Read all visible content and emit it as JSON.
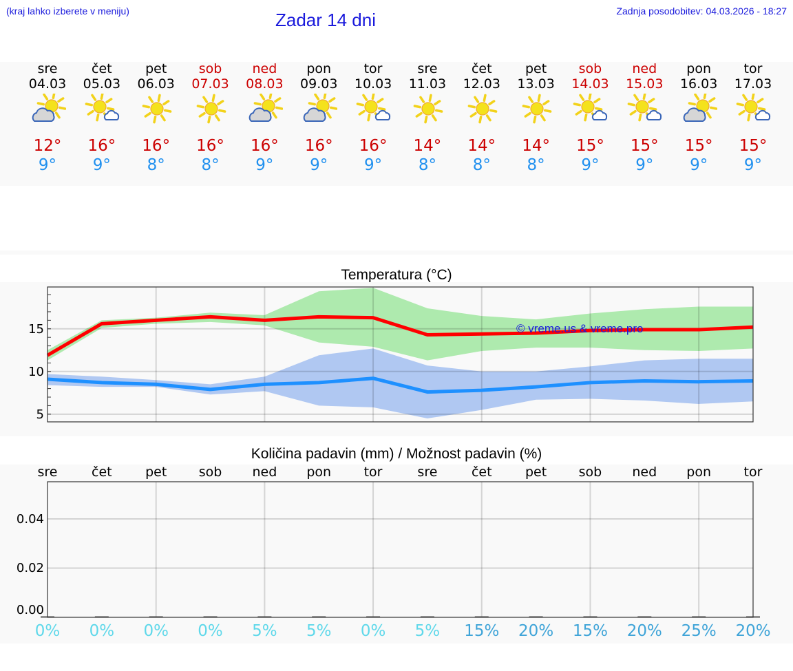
{
  "header": {
    "location_hint": "(kraj lahko izberete v meniju)",
    "title": "Zadar 14 dni",
    "last_update": "Zadnja posodobitev: 04.03.2026 - 18:27"
  },
  "days": [
    {
      "name": "sre",
      "date": "04.03",
      "weekend": false,
      "icon": "partly-cloudy-grey-cloud-icon",
      "tmax": "12°",
      "tmin": "9°"
    },
    {
      "name": "čet",
      "date": "05.03",
      "weekend": false,
      "icon": "sun-small-cloud-icon",
      "tmax": "16°",
      "tmin": "9°"
    },
    {
      "name": "pet",
      "date": "06.03",
      "weekend": false,
      "icon": "sunny-icon",
      "tmax": "16°",
      "tmin": "8°"
    },
    {
      "name": "sob",
      "date": "07.03",
      "weekend": true,
      "icon": "sunny-icon",
      "tmax": "16°",
      "tmin": "8°"
    },
    {
      "name": "ned",
      "date": "08.03",
      "weekend": true,
      "icon": "partly-cloudy-grey-cloud-icon",
      "tmax": "16°",
      "tmin": "9°"
    },
    {
      "name": "pon",
      "date": "09.03",
      "weekend": false,
      "icon": "partly-cloudy-grey-cloud-icon",
      "tmax": "16°",
      "tmin": "9°"
    },
    {
      "name": "tor",
      "date": "10.03",
      "weekend": false,
      "icon": "sun-small-cloud-icon",
      "tmax": "16°",
      "tmin": "9°"
    },
    {
      "name": "sre",
      "date": "11.03",
      "weekend": false,
      "icon": "sunny-icon",
      "tmax": "14°",
      "tmin": "8°"
    },
    {
      "name": "čet",
      "date": "12.03",
      "weekend": false,
      "icon": "sunny-icon",
      "tmax": "14°",
      "tmin": "8°"
    },
    {
      "name": "pet",
      "date": "13.03",
      "weekend": false,
      "icon": "sunny-icon",
      "tmax": "14°",
      "tmin": "8°"
    },
    {
      "name": "sob",
      "date": "14.03",
      "weekend": true,
      "icon": "sun-small-cloud-icon",
      "tmax": "15°",
      "tmin": "9°"
    },
    {
      "name": "ned",
      "date": "15.03",
      "weekend": true,
      "icon": "sun-small-cloud-icon",
      "tmax": "15°",
      "tmin": "9°"
    },
    {
      "name": "pon",
      "date": "16.03",
      "weekend": false,
      "icon": "partly-cloudy-grey-cloud-icon",
      "tmax": "15°",
      "tmin": "9°"
    },
    {
      "name": "tor",
      "date": "17.03",
      "weekend": false,
      "icon": "sun-small-cloud-icon",
      "tmax": "15°",
      "tmin": "9°"
    }
  ],
  "colors": {
    "header_text": "#1a1adc",
    "weekend": "#cc0000",
    "tmax": "#cc0000",
    "tmin": "#2090ef",
    "max_line": "#ff0000",
    "max_band": "#aeeaae",
    "min_line": "#1e90ff",
    "min_band": "#b0c8f2",
    "pct_low": "#5fd8ea",
    "pct_high": "#3fa4d8",
    "panel_bg": "#f9f9f9"
  },
  "temperature_chart": {
    "title": "Temperatura (°C)",
    "watermark": "© vreme.us & vreme.pro",
    "y_ticks": [
      "15",
      "10",
      "5"
    ]
  },
  "precip_chart": {
    "title": "Količina padavin (mm) / Možnost padavin (%)",
    "weekday_labels": [
      "sre",
      "čet",
      "pet",
      "sob",
      "ned",
      "pon",
      "tor",
      "sre",
      "čet",
      "pet",
      "sob",
      "ned",
      "pon",
      "tor"
    ],
    "y_ticks": [
      "0.04",
      "0.02",
      "0.00"
    ],
    "probabilities": [
      "0%",
      "0%",
      "0%",
      "0%",
      "5%",
      "5%",
      "0%",
      "5%",
      "15%",
      "20%",
      "15%",
      "20%",
      "25%",
      "20%"
    ]
  },
  "chart_data": [
    {
      "type": "line",
      "title": "Temperatura (°C)",
      "xlabel": "",
      "ylabel": "°C",
      "categories": [
        "04.03",
        "05.03",
        "06.03",
        "07.03",
        "08.03",
        "09.03",
        "10.03",
        "11.03",
        "12.03",
        "13.03",
        "14.03",
        "15.03",
        "16.03",
        "17.03"
      ],
      "ylim": [
        4.1,
        19.9
      ],
      "y_ticks": [
        5,
        10,
        15
      ],
      "grid": true,
      "series": [
        {
          "name": "Max temperature",
          "color": "#ff0000",
          "values": [
            11.9,
            15.6,
            16.0,
            16.4,
            16.0,
            16.4,
            16.3,
            14.3,
            14.4,
            14.5,
            14.8,
            14.9,
            14.9,
            15.2
          ]
        },
        {
          "name": "Max range upper",
          "color": "#aeeaae",
          "values": [
            12.5,
            16.0,
            16.3,
            16.9,
            16.6,
            19.4,
            19.8,
            17.4,
            16.5,
            16.1,
            16.8,
            17.3,
            17.6,
            17.6
          ]
        },
        {
          "name": "Max range lower",
          "color": "#aeeaae",
          "values": [
            11.3,
            15.1,
            15.6,
            15.8,
            15.4,
            13.4,
            12.9,
            11.3,
            12.4,
            12.8,
            12.8,
            12.5,
            12.4,
            12.7
          ]
        },
        {
          "name": "Min temperature",
          "color": "#1e90ff",
          "values": [
            9.1,
            8.7,
            8.5,
            7.9,
            8.5,
            8.7,
            9.2,
            7.6,
            7.8,
            8.2,
            8.7,
            8.9,
            8.8,
            8.9
          ]
        },
        {
          "name": "Min range upper",
          "color": "#b0c8f2",
          "values": [
            9.7,
            9.4,
            9.0,
            8.5,
            9.4,
            11.9,
            12.7,
            10.7,
            10.0,
            10.0,
            10.6,
            11.3,
            11.5,
            11.5
          ]
        },
        {
          "name": "Min range lower",
          "color": "#b0c8f2",
          "values": [
            8.4,
            8.2,
            8.2,
            7.3,
            7.7,
            6.0,
            5.8,
            4.5,
            5.5,
            6.7,
            6.8,
            6.6,
            6.2,
            6.5
          ]
        }
      ],
      "annotations": [
        "© vreme.us & vreme.pro"
      ]
    },
    {
      "type": "bar",
      "title": "Količina padavin (mm) / Možnost padavin (%)",
      "xlabel": "",
      "ylabel": "mm",
      "categories": [
        "sre",
        "čet",
        "pet",
        "sob",
        "ned",
        "pon",
        "tor",
        "sre",
        "čet",
        "pet",
        "sob",
        "ned",
        "pon",
        "tor"
      ],
      "ylim": [
        0,
        0.055
      ],
      "y_ticks": [
        0.0,
        0.02,
        0.04
      ],
      "grid": true,
      "series": [
        {
          "name": "Količina padavin (mm)",
          "values": [
            0,
            0,
            0,
            0,
            0,
            0,
            0,
            0,
            0,
            0,
            0,
            0,
            0,
            0
          ]
        },
        {
          "name": "Možnost padavin (%)",
          "values": [
            0,
            0,
            0,
            0,
            5,
            5,
            0,
            5,
            15,
            20,
            15,
            20,
            25,
            20
          ]
        }
      ]
    }
  ]
}
